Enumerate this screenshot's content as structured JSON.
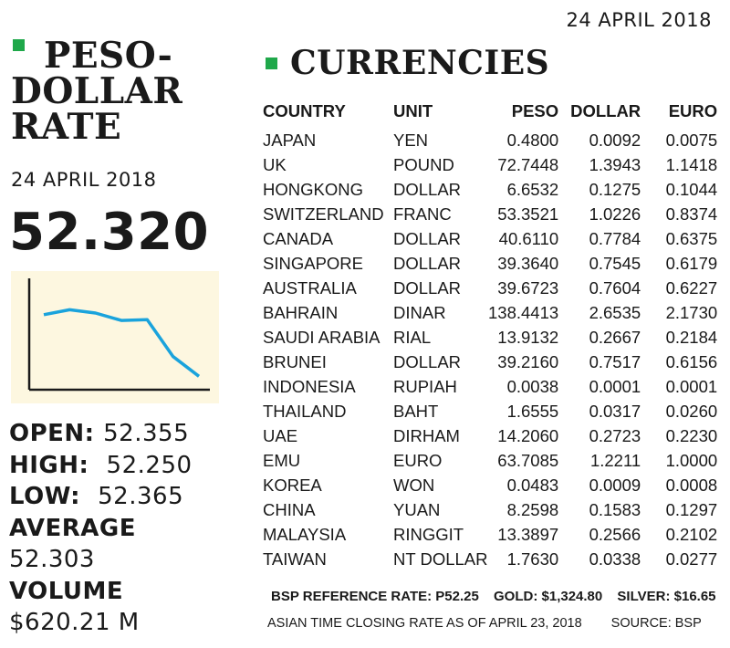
{
  "top_date": "24 APRIL 2018",
  "left": {
    "title_line1": "PESO-",
    "title_line2": "DOLLAR",
    "title_line3": "RATE",
    "date": "24 APRIL 2018",
    "rate": "52.320",
    "open_label": "OPEN:",
    "open_value": "52.355",
    "high_label": "HIGH:",
    "high_value": "52.250",
    "low_label": "LOW:",
    "low_value": "52.365",
    "average_label": "AVERAGE",
    "average_value": "52.303",
    "volume_label": "VOLUME",
    "volume_value": "$620.21 M"
  },
  "colors": {
    "accent_square": "#1fa84a",
    "chart_line": "#1aa3dc",
    "chart_bg": "#fdf7e0"
  },
  "chart_data": {
    "type": "line",
    "x": [
      1,
      2,
      3,
      4,
      5,
      6,
      7
    ],
    "values": [
      0.78,
      0.84,
      0.8,
      0.71,
      0.72,
      0.27,
      0.03
    ],
    "ylim": [
      0,
      1
    ],
    "title": "",
    "xlabel": "",
    "ylabel": ""
  },
  "right": {
    "title": "CURRENCIES",
    "headers": [
      "COUNTRY",
      "UNIT",
      "PESO",
      "DOLLAR",
      "EURO"
    ],
    "rows": [
      [
        "JAPAN",
        "YEN",
        "0.4800",
        "0.0092",
        "0.0075"
      ],
      [
        "UK",
        "POUND",
        "72.7448",
        "1.3943",
        "1.1418"
      ],
      [
        "HONGKONG",
        "DOLLAR",
        "6.6532",
        "0.1275",
        "0.1044"
      ],
      [
        "SWITZERLAND",
        "FRANC",
        "53.3521",
        "1.0226",
        "0.8374"
      ],
      [
        "CANADA",
        "DOLLAR",
        "40.6110",
        "0.7784",
        "0.6375"
      ],
      [
        "SINGAPORE",
        "DOLLAR",
        "39.3640",
        "0.7545",
        "0.6179"
      ],
      [
        "AUSTRALIA",
        "DOLLAR",
        "39.6723",
        "0.7604",
        "0.6227"
      ],
      [
        "BAHRAIN",
        "DINAR",
        "138.4413",
        "2.6535",
        "2.1730"
      ],
      [
        "SAUDI ARABIA",
        "RIAL",
        "13.9132",
        "0.2667",
        "0.2184"
      ],
      [
        "BRUNEI",
        "DOLLAR",
        "39.2160",
        "0.7517",
        "0.6156"
      ],
      [
        "INDONESIA",
        "RUPIAH",
        "0.0038",
        "0.0001",
        "0.0001"
      ],
      [
        "THAILAND",
        "BAHT",
        "1.6555",
        "0.0317",
        "0.0260"
      ],
      [
        "UAE",
        "DIRHAM",
        "14.2060",
        "0.2723",
        "0.2230"
      ],
      [
        "EMU",
        "EURO",
        "63.7085",
        "1.2211",
        "1.0000"
      ],
      [
        "KOREA",
        "WON",
        "0.0483",
        "0.0009",
        "0.0008"
      ],
      [
        "CHINA",
        "YUAN",
        "8.2598",
        "0.1583",
        "0.1297"
      ],
      [
        "MALAYSIA",
        "RINGGIT",
        "13.3897",
        "0.2566",
        "0.2102"
      ],
      [
        "TAIWAN",
        "NT DOLLAR",
        "1.7630",
        "0.0338",
        "0.0277"
      ]
    ]
  },
  "footer": {
    "bsp_rate": "BSP REFERENCE RATE: P52.25",
    "gold": "GOLD: $1,324.80",
    "silver": "SILVER: $16.65",
    "closing": "ASIAN TIME CLOSING RATE AS OF  APRIL 23, 2018",
    "source": "SOURCE: BSP"
  }
}
